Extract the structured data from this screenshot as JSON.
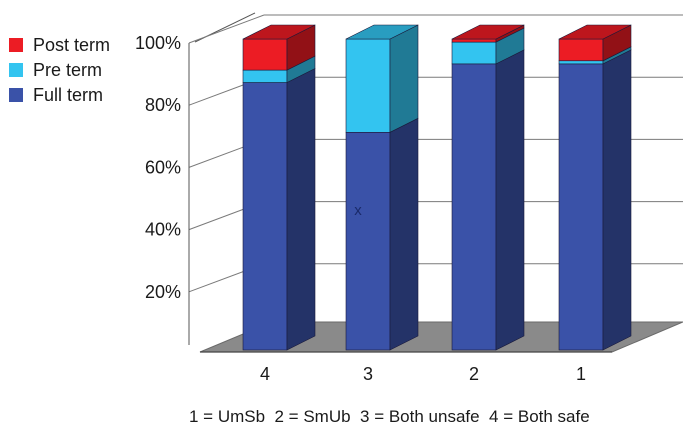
{
  "chart_data": {
    "type": "bar",
    "stacked": true,
    "three_d": true,
    "categories": [
      "4",
      "3",
      "2",
      "1"
    ],
    "series": [
      {
        "name": "Full term",
        "color": "#3a52a8",
        "values": [
          86,
          70,
          92,
          92
        ]
      },
      {
        "name": "Pre term",
        "color": "#33c4f0",
        "values": [
          4,
          30,
          7,
          1
        ]
      },
      {
        "name": "Post term",
        "color": "#ec1c24",
        "values": [
          10,
          0,
          1,
          7
        ]
      }
    ],
    "y_ticks": [
      "20%",
      "40%",
      "60%",
      "80%",
      "100%"
    ],
    "ylim": [
      0,
      100
    ],
    "grid": true,
    "legend_position": "top-left",
    "annotation": "x",
    "footnote": "1 = UmSb  2 = SmUb  3 = Both unsafe  4 = Both safe"
  }
}
